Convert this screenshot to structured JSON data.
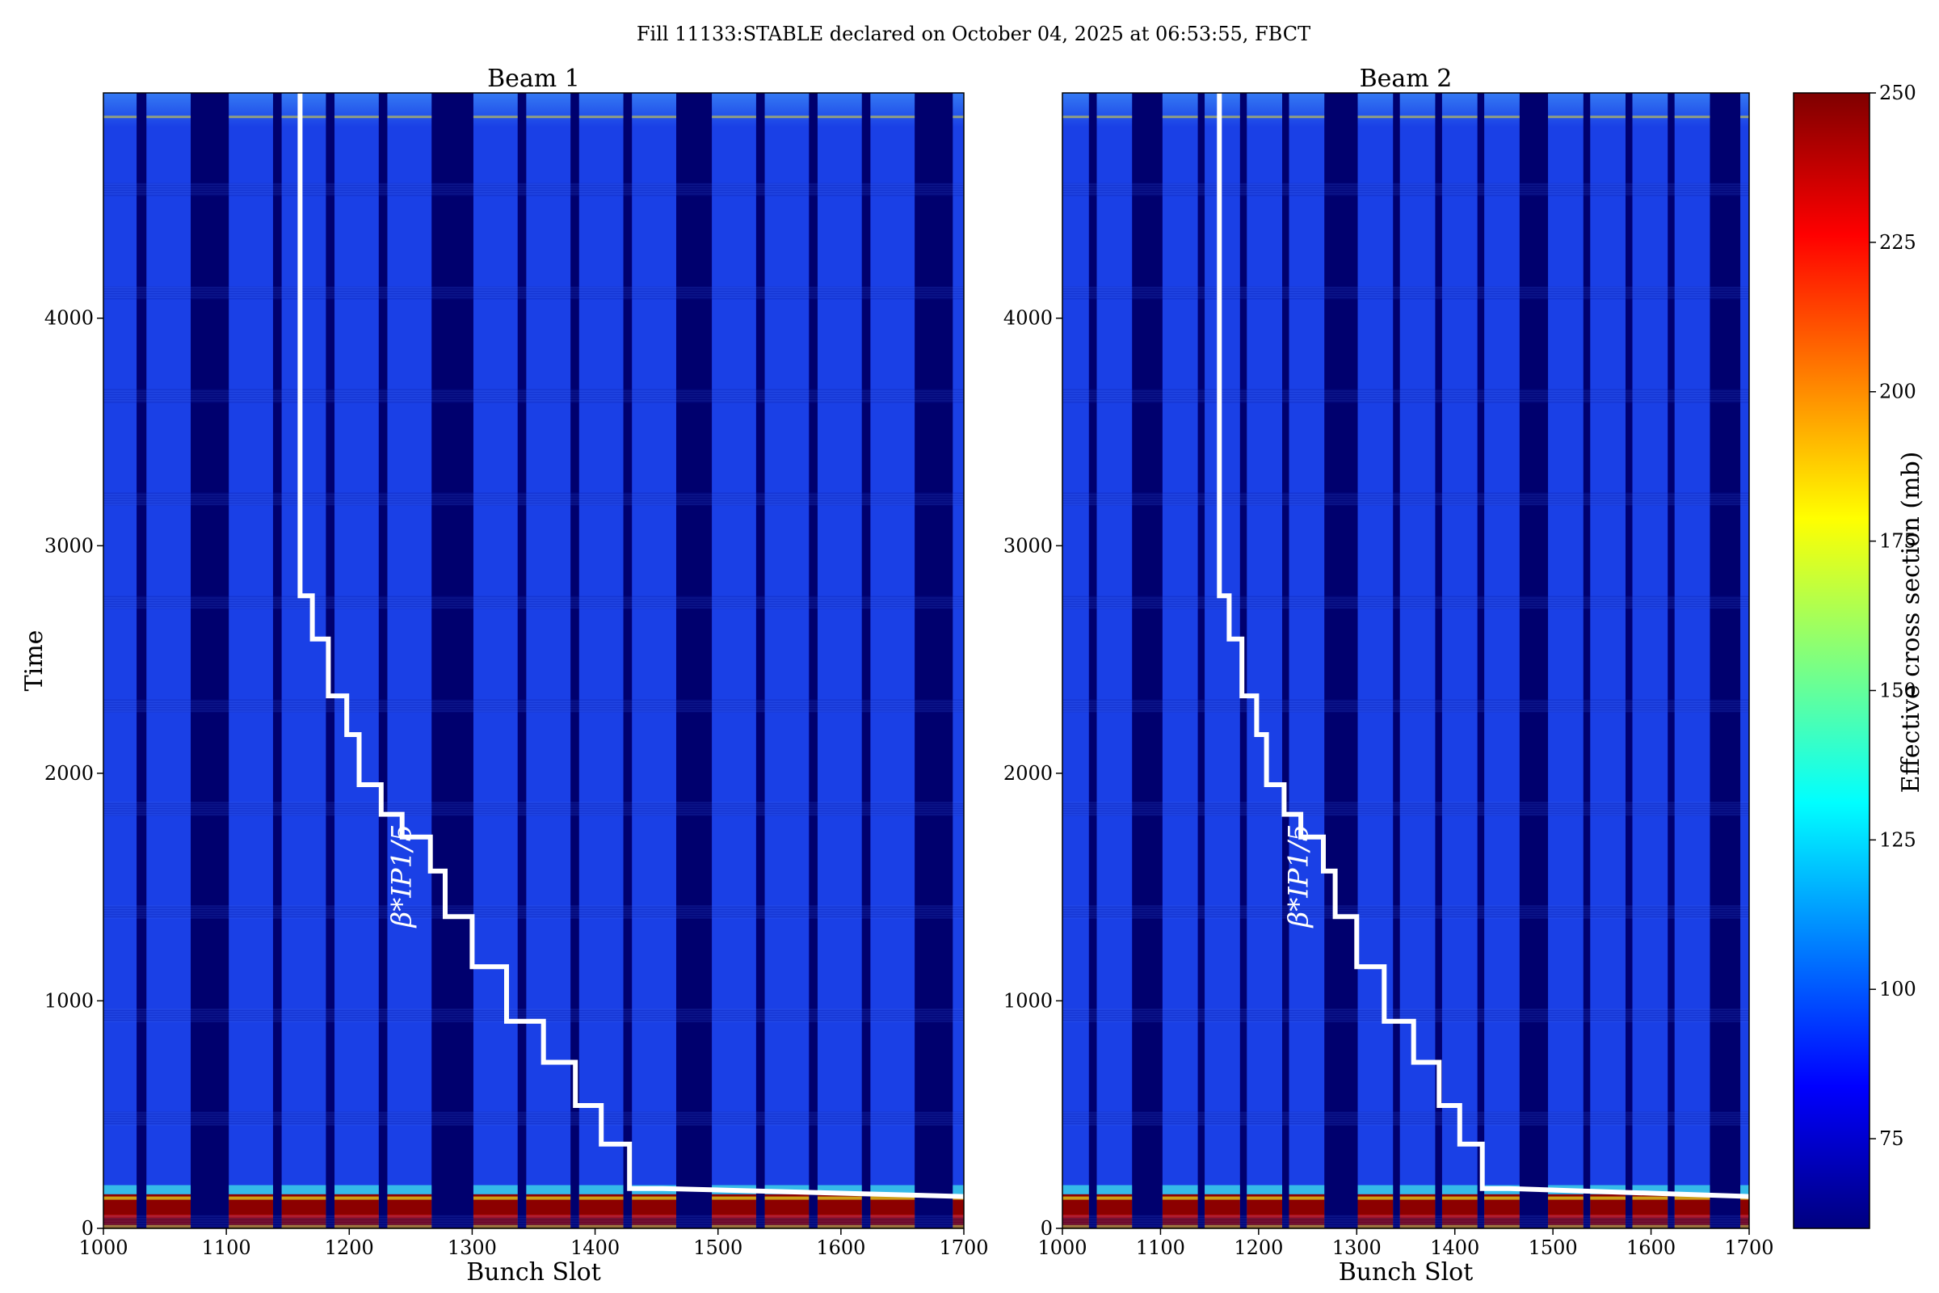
{
  "figure": {
    "title": "Fill 11133:STABLE declared on October 04, 2025 at 06:53:55, FBCT"
  },
  "colors": {
    "background_dark": "#00006e",
    "train_blue": "#1a40e6",
    "hot_dark_red": "#8c0000",
    "hot_red": "#d81000",
    "hot_yellow": "#e8e020",
    "beta_line": "#ffffff",
    "colormap": [
      "#00007f",
      "#0000ff",
      "#007fff",
      "#00ffff",
      "#7fff7f",
      "#ffff00",
      "#ff7f00",
      "#ff0000",
      "#7f0000"
    ]
  },
  "chart_data": [
    {
      "type": "heatmap",
      "title": "Beam 1",
      "xlabel": "Bunch Slot",
      "ylabel": "Time",
      "xlim": [
        1000,
        1700
      ],
      "ylim": [
        0,
        4990
      ],
      "xticks": [
        1000,
        1100,
        1200,
        1300,
        1400,
        1500,
        1600,
        1700
      ],
      "yticks": [
        0,
        1000,
        2000,
        3000,
        4000
      ],
      "filled_bunch_trains": [
        [
          1000,
          1027
        ],
        [
          1035,
          1071
        ],
        [
          1102,
          1138
        ],
        [
          1145,
          1181
        ],
        [
          1188,
          1224
        ],
        [
          1231,
          1267
        ],
        [
          1301,
          1337
        ],
        [
          1344,
          1380
        ],
        [
          1387,
          1423
        ],
        [
          1430,
          1466
        ],
        [
          1495,
          1531
        ],
        [
          1538,
          1574
        ],
        [
          1581,
          1617
        ],
        [
          1624,
          1660
        ],
        [
          1691,
          1700
        ]
      ],
      "high_cross_section_until_time": 150,
      "annotation": "β*IP1/5",
      "beta_star_staircase": {
        "x": [
          1160,
          1160,
          1170,
          1170,
          1183,
          1183,
          1198,
          1198,
          1208,
          1208,
          1226,
          1226,
          1243,
          1243,
          1266,
          1266,
          1278,
          1278,
          1300,
          1300,
          1328,
          1328,
          1358,
          1358,
          1384,
          1384,
          1405,
          1405,
          1428,
          1428,
          1455,
          1700
        ],
        "y": [
          4990,
          2780,
          2780,
          2590,
          2590,
          2340,
          2340,
          2170,
          2170,
          1950,
          1950,
          1820,
          1820,
          1720,
          1720,
          1570,
          1570,
          1370,
          1370,
          1150,
          1150,
          910,
          910,
          730,
          730,
          540,
          540,
          370,
          370,
          175,
          175,
          140
        ]
      }
    },
    {
      "type": "heatmap",
      "title": "Beam 2",
      "xlabel": "Bunch Slot",
      "ylabel": "",
      "xlim": [
        1000,
        1700
      ],
      "ylim": [
        0,
        4990
      ],
      "xticks": [
        1000,
        1100,
        1200,
        1300,
        1400,
        1500,
        1600,
        1700
      ],
      "yticks": [
        0,
        1000,
        2000,
        3000,
        4000
      ],
      "filled_bunch_trains": [
        [
          1000,
          1027
        ],
        [
          1035,
          1071
        ],
        [
          1102,
          1138
        ],
        [
          1145,
          1181
        ],
        [
          1188,
          1224
        ],
        [
          1231,
          1267
        ],
        [
          1301,
          1337
        ],
        [
          1344,
          1380
        ],
        [
          1387,
          1423
        ],
        [
          1430,
          1466
        ],
        [
          1495,
          1531
        ],
        [
          1538,
          1574
        ],
        [
          1581,
          1617
        ],
        [
          1624,
          1660
        ],
        [
          1691,
          1700
        ]
      ],
      "high_cross_section_until_time": 150,
      "annotation": "β*IP1/5",
      "beta_star_staircase": {
        "x": [
          1160,
          1160,
          1170,
          1170,
          1183,
          1183,
          1198,
          1198,
          1208,
          1208,
          1226,
          1226,
          1243,
          1243,
          1266,
          1266,
          1278,
          1278,
          1300,
          1300,
          1328,
          1328,
          1358,
          1358,
          1384,
          1384,
          1405,
          1405,
          1428,
          1428,
          1455,
          1700
        ],
        "y": [
          4990,
          2780,
          2780,
          2590,
          2590,
          2340,
          2340,
          2170,
          2170,
          1950,
          1950,
          1820,
          1820,
          1720,
          1720,
          1570,
          1570,
          1370,
          1370,
          1150,
          1150,
          910,
          910,
          730,
          730,
          540,
          540,
          370,
          370,
          175,
          175,
          140
        ]
      }
    }
  ],
  "colorbar": {
    "label": "Effective cross section (mb)",
    "range": [
      60,
      250
    ],
    "ticks": [
      "75",
      "100",
      "125",
      "150",
      "175",
      "200",
      "225",
      "250"
    ],
    "tick_values": [
      75,
      100,
      125,
      150,
      175,
      200,
      225,
      250
    ]
  }
}
